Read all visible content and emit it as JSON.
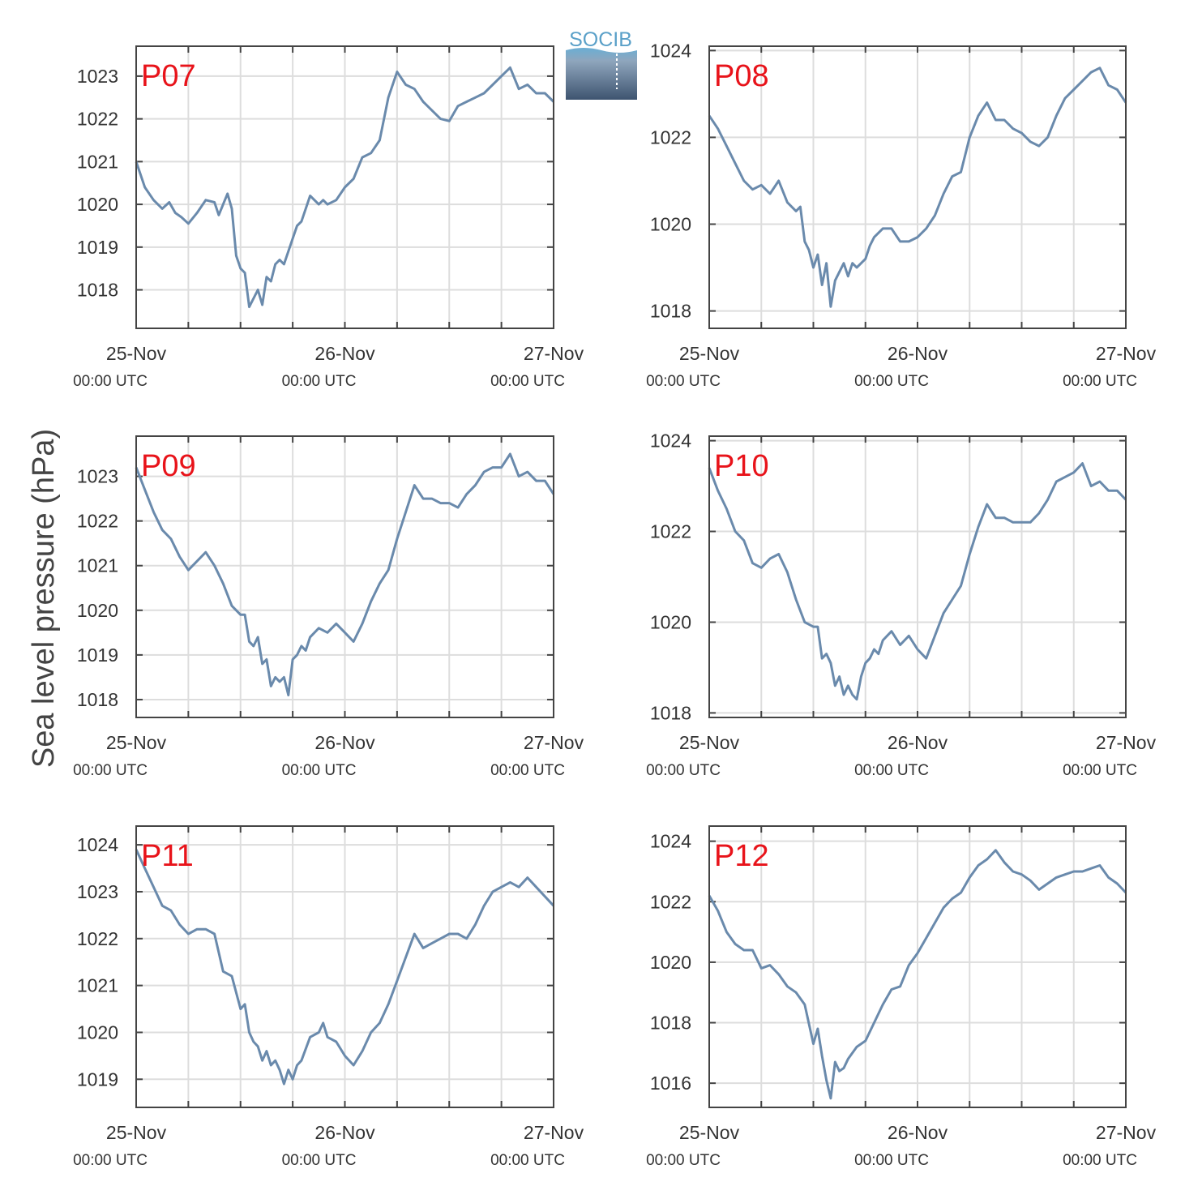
{
  "figure": {
    "ylabel": "Sea level pressure (hPa)",
    "logo_text": "SOCIB",
    "line_color": "#6a8aac",
    "label_color": "#e8131a",
    "grid_color": "#dddddd"
  },
  "chart_data": [
    {
      "type": "line",
      "label": "P07",
      "xlim": [
        0,
        48
      ],
      "ylim": [
        1017.1,
        1023.7
      ],
      "yticks": [
        1018,
        1019,
        1020,
        1021,
        1022,
        1023
      ],
      "xticks": [
        0,
        24,
        48
      ],
      "xticklabels": [
        [
          "25-Nov",
          "00:00 UTC"
        ],
        [
          "26-Nov",
          "00:00 UTC"
        ],
        [
          "27-Nov",
          "00:00 UTC"
        ]
      ],
      "x": [
        0,
        1,
        2,
        3,
        3.8,
        4.5,
        5.2,
        6,
        7,
        8,
        9,
        9.5,
        10,
        10.5,
        11,
        11.5,
        12,
        12.5,
        13,
        14,
        14.5,
        15,
        15.5,
        16,
        16.5,
        17,
        18,
        18.5,
        19,
        20,
        21,
        21.5,
        22,
        23,
        24,
        25,
        26,
        27,
        28,
        29,
        30,
        31,
        32,
        33,
        34,
        35,
        36,
        37,
        38,
        39,
        40,
        41,
        42,
        43,
        44,
        45,
        45.5,
        46,
        47,
        48
      ],
      "values": [
        1021.0,
        1020.4,
        1020.1,
        1019.9,
        1020.05,
        1019.8,
        1019.7,
        1019.55,
        1019.8,
        1020.1,
        1020.05,
        1019.75,
        1020.0,
        1020.25,
        1019.9,
        1018.8,
        1018.5,
        1018.4,
        1017.6,
        1018.0,
        1017.65,
        1018.3,
        1018.2,
        1018.6,
        1018.7,
        1018.6,
        1019.2,
        1019.5,
        1019.6,
        1020.2,
        1020.0,
        1020.1,
        1020.0,
        1020.1,
        1020.4,
        1020.6,
        1021.1,
        1021.2,
        1021.5,
        1022.5,
        1023.1,
        1022.8,
        1022.7,
        1022.4,
        1022.2,
        1022.0,
        1021.95,
        1022.3,
        1022.4,
        1022.5,
        1022.6,
        1022.8,
        1023.0,
        1023.2,
        1022.7,
        1022.8,
        1022.7,
        1022.6,
        1022.6,
        1022.4
      ]
    },
    {
      "type": "line",
      "label": "P08",
      "xlim": [
        0,
        48
      ],
      "ylim": [
        1017.6,
        1024.1
      ],
      "yticks": [
        1018,
        1020,
        1022,
        1024
      ],
      "xticks": [
        0,
        24,
        48
      ],
      "xticklabels": [
        [
          "25-Nov",
          "00:00 UTC"
        ],
        [
          "26-Nov",
          "00:00 UTC"
        ],
        [
          "27-Nov",
          "00:00 UTC"
        ]
      ],
      "x": [
        0,
        1,
        2,
        3,
        4,
        5,
        6,
        7,
        8,
        9,
        10,
        10.5,
        11,
        11.5,
        12,
        12.5,
        13,
        13.5,
        14,
        14.5,
        15,
        15.5,
        16,
        16.5,
        17,
        17.5,
        18,
        18.5,
        19,
        20,
        21,
        22,
        23,
        24,
        25,
        26,
        27,
        28,
        29,
        30,
        31,
        32,
        33,
        34,
        35,
        36,
        37,
        38,
        39,
        40,
        41,
        42,
        43,
        44,
        45,
        46,
        47,
        48
      ],
      "values": [
        1022.5,
        1022.2,
        1021.8,
        1021.4,
        1021.0,
        1020.8,
        1020.9,
        1020.7,
        1021.0,
        1020.5,
        1020.3,
        1020.4,
        1019.6,
        1019.4,
        1019.0,
        1019.3,
        1018.6,
        1019.1,
        1018.1,
        1018.7,
        1018.9,
        1019.1,
        1018.8,
        1019.1,
        1019.0,
        1019.1,
        1019.2,
        1019.5,
        1019.7,
        1019.9,
        1019.9,
        1019.6,
        1019.6,
        1019.7,
        1019.9,
        1020.2,
        1020.7,
        1021.1,
        1021.2,
        1022.0,
        1022.5,
        1022.8,
        1022.4,
        1022.4,
        1022.2,
        1022.1,
        1021.9,
        1021.8,
        1022.0,
        1022.5,
        1022.9,
        1023.1,
        1023.3,
        1023.5,
        1023.6,
        1023.2,
        1023.1,
        1022.8
      ]
    },
    {
      "type": "line",
      "label": "P09",
      "xlim": [
        0,
        48
      ],
      "ylim": [
        1017.6,
        1023.9
      ],
      "yticks": [
        1018,
        1019,
        1020,
        1021,
        1022,
        1023
      ],
      "xticks": [
        0,
        24,
        48
      ],
      "xticklabels": [
        [
          "25-Nov",
          "00:00 UTC"
        ],
        [
          "26-Nov",
          "00:00 UTC"
        ],
        [
          "27-Nov",
          "00:00 UTC"
        ]
      ],
      "x": [
        0,
        1,
        2,
        3,
        4,
        5,
        6,
        7,
        8,
        9,
        10,
        11,
        12,
        12.5,
        13,
        13.5,
        14,
        14.5,
        15,
        15.5,
        16,
        16.5,
        17,
        17.5,
        18,
        18.5,
        19,
        19.5,
        20,
        21,
        22,
        23,
        24,
        25,
        26,
        27,
        28,
        29,
        30,
        31,
        32,
        33,
        34,
        35,
        36,
        37,
        38,
        39,
        40,
        41,
        42,
        43,
        44,
        45,
        46,
        47,
        48
      ],
      "values": [
        1023.2,
        1022.7,
        1022.2,
        1021.8,
        1021.6,
        1021.2,
        1020.9,
        1021.1,
        1021.3,
        1021.0,
        1020.6,
        1020.1,
        1019.9,
        1019.9,
        1019.3,
        1019.2,
        1019.4,
        1018.8,
        1018.9,
        1018.3,
        1018.5,
        1018.4,
        1018.5,
        1018.1,
        1018.9,
        1019.0,
        1019.2,
        1019.1,
        1019.4,
        1019.6,
        1019.5,
        1019.7,
        1019.5,
        1019.3,
        1019.7,
        1020.2,
        1020.6,
        1020.9,
        1021.6,
        1022.2,
        1022.8,
        1022.5,
        1022.5,
        1022.4,
        1022.4,
        1022.3,
        1022.6,
        1022.8,
        1023.1,
        1023.2,
        1023.2,
        1023.5,
        1023.0,
        1023.1,
        1022.9,
        1022.9,
        1022.6
      ]
    },
    {
      "type": "line",
      "label": "P10",
      "xlim": [
        0,
        48
      ],
      "ylim": [
        1017.9,
        1024.1
      ],
      "yticks": [
        1018,
        1020,
        1022,
        1024
      ],
      "xticks": [
        0,
        24,
        48
      ],
      "xticklabels": [
        [
          "25-Nov",
          "00:00 UTC"
        ],
        [
          "26-Nov",
          "00:00 UTC"
        ],
        [
          "27-Nov",
          "00:00 UTC"
        ]
      ],
      "x": [
        0,
        1,
        2,
        3,
        4,
        5,
        6,
        7,
        8,
        9,
        10,
        11,
        12,
        12.5,
        13,
        13.5,
        14,
        14.5,
        15,
        15.5,
        16,
        16.5,
        17,
        17.5,
        18,
        18.5,
        19,
        19.5,
        20,
        21,
        22,
        23,
        24,
        25,
        26,
        27,
        28,
        29,
        30,
        31,
        32,
        33,
        34,
        35,
        36,
        37,
        38,
        39,
        40,
        41,
        42,
        43,
        44,
        45,
        46,
        47,
        48
      ],
      "values": [
        1023.4,
        1022.9,
        1022.5,
        1022.0,
        1021.8,
        1021.3,
        1021.2,
        1021.4,
        1021.5,
        1021.1,
        1020.5,
        1020.0,
        1019.9,
        1019.9,
        1019.2,
        1019.3,
        1019.1,
        1018.6,
        1018.8,
        1018.4,
        1018.6,
        1018.4,
        1018.3,
        1018.8,
        1019.1,
        1019.2,
        1019.4,
        1019.3,
        1019.6,
        1019.8,
        1019.5,
        1019.7,
        1019.4,
        1019.2,
        1019.7,
        1020.2,
        1020.5,
        1020.8,
        1021.5,
        1022.1,
        1022.6,
        1022.3,
        1022.3,
        1022.2,
        1022.2,
        1022.2,
        1022.4,
        1022.7,
        1023.1,
        1023.2,
        1023.3,
        1023.5,
        1023.0,
        1023.1,
        1022.9,
        1022.9,
        1022.7
      ]
    },
    {
      "type": "line",
      "label": "P11",
      "xlim": [
        0,
        48
      ],
      "ylim": [
        1018.4,
        1024.4
      ],
      "yticks": [
        1019,
        1020,
        1021,
        1022,
        1023,
        1024
      ],
      "xticks": [
        0,
        24,
        48
      ],
      "xticklabels": [
        [
          "25-Nov",
          "00:00 UTC"
        ],
        [
          "26-Nov",
          "00:00 UTC"
        ],
        [
          "27-Nov",
          "00:00 UTC"
        ]
      ],
      "x": [
        0,
        1,
        2,
        3,
        4,
        5,
        6,
        7,
        8,
        9,
        10,
        11,
        12,
        12.5,
        13,
        13.5,
        14,
        14.5,
        15,
        15.5,
        16,
        16.5,
        17,
        17.5,
        18,
        18.5,
        19,
        20,
        21,
        21.5,
        22,
        23,
        24,
        25,
        26,
        27,
        28,
        29,
        30,
        31,
        32,
        33,
        34,
        35,
        36,
        37,
        38,
        39,
        40,
        41,
        42,
        43,
        44,
        45,
        46,
        47,
        48
      ],
      "values": [
        1023.9,
        1023.5,
        1023.1,
        1022.7,
        1022.6,
        1022.3,
        1022.1,
        1022.2,
        1022.2,
        1022.1,
        1021.3,
        1021.2,
        1020.5,
        1020.6,
        1020.0,
        1019.8,
        1019.7,
        1019.4,
        1019.6,
        1019.3,
        1019.4,
        1019.2,
        1018.9,
        1019.2,
        1019.0,
        1019.3,
        1019.4,
        1019.9,
        1020.0,
        1020.2,
        1019.9,
        1019.8,
        1019.5,
        1019.3,
        1019.6,
        1020.0,
        1020.2,
        1020.6,
        1021.1,
        1021.6,
        1022.1,
        1021.8,
        1021.9,
        1022.0,
        1022.1,
        1022.1,
        1022.0,
        1022.3,
        1022.7,
        1023.0,
        1023.1,
        1023.2,
        1023.1,
        1023.3,
        1023.1,
        1022.9,
        1022.7
      ]
    },
    {
      "type": "line",
      "label": "P12",
      "xlim": [
        0,
        48
      ],
      "ylim": [
        1015.2,
        1024.5
      ],
      "yticks": [
        1016,
        1018,
        1020,
        1022,
        1024
      ],
      "xticks": [
        0,
        24,
        48
      ],
      "xticklabels": [
        [
          "25-Nov",
          "00:00 UTC"
        ],
        [
          "26-Nov",
          "00:00 UTC"
        ],
        [
          "27-Nov",
          "00:00 UTC"
        ]
      ],
      "x": [
        0,
        1,
        2,
        3,
        4,
        5,
        6,
        7,
        8,
        9,
        10,
        11,
        12,
        12.5,
        13,
        13.5,
        14,
        14.5,
        15,
        15.5,
        16,
        17,
        18,
        19,
        20,
        21,
        22,
        23,
        24,
        25,
        26,
        27,
        28,
        29,
        30,
        31,
        32,
        33,
        34,
        35,
        36,
        37,
        38,
        39,
        40,
        41,
        42,
        43,
        44,
        45,
        46,
        47,
        48
      ],
      "values": [
        1022.2,
        1021.7,
        1021.0,
        1020.6,
        1020.4,
        1020.4,
        1019.8,
        1019.9,
        1019.6,
        1019.2,
        1019.0,
        1018.6,
        1017.3,
        1017.8,
        1016.9,
        1016.1,
        1015.5,
        1016.7,
        1016.4,
        1016.5,
        1016.8,
        1017.2,
        1017.4,
        1018.0,
        1018.6,
        1019.1,
        1019.2,
        1019.9,
        1020.3,
        1020.8,
        1021.3,
        1021.8,
        1022.1,
        1022.3,
        1022.8,
        1023.2,
        1023.4,
        1023.7,
        1023.3,
        1023.0,
        1022.9,
        1022.7,
        1022.4,
        1022.6,
        1022.8,
        1022.9,
        1023.0,
        1023.0,
        1023.1,
        1023.2,
        1022.8,
        1022.6,
        1022.3
      ]
    }
  ]
}
